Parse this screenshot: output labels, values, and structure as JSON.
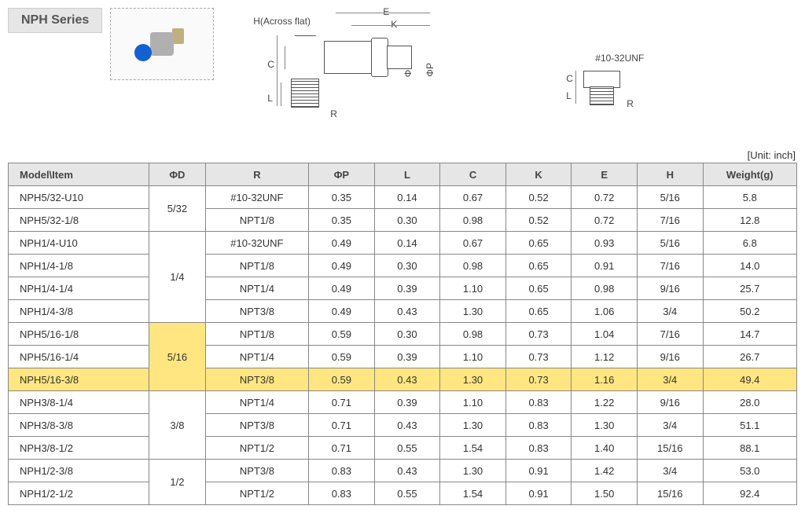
{
  "series_title": "NPH Series",
  "unit_label": "[Unit: inch]",
  "diagram_labels": {
    "h_across_flat": "H(Across flat)",
    "E": "E",
    "K": "K",
    "C": "C",
    "L": "L",
    "R": "R",
    "phiD": "ΦD",
    "phiP": "ΦP",
    "unf": "#10-32UNF"
  },
  "columns": [
    "Model\\Item",
    "ΦD",
    "R",
    "ΦP",
    "L",
    "C",
    "K",
    "E",
    "H",
    "Weight(g)"
  ],
  "groups": [
    {
      "phiD": "5/32",
      "highlightPhiD": false,
      "rows": [
        {
          "model": "NPH5/32-U10",
          "R": "#10-32UNF",
          "phiP": "0.35",
          "L": "0.14",
          "C": "0.67",
          "K": "0.52",
          "E": "0.72",
          "H": "5/16",
          "W": "5.8",
          "hl": false
        },
        {
          "model": "NPH5/32-1/8",
          "R": "NPT1/8",
          "phiP": "0.35",
          "L": "0.30",
          "C": "0.98",
          "K": "0.52",
          "E": "0.72",
          "H": "7/16",
          "W": "12.8",
          "hl": false
        }
      ]
    },
    {
      "phiD": "1/4",
      "highlightPhiD": false,
      "rows": [
        {
          "model": "NPH1/4-U10",
          "R": "#10-32UNF",
          "phiP": "0.49",
          "L": "0.14",
          "C": "0.67",
          "K": "0.65",
          "E": "0.93",
          "H": "5/16",
          "W": "6.8",
          "hl": false
        },
        {
          "model": "NPH1/4-1/8",
          "R": "NPT1/8",
          "phiP": "0.49",
          "L": "0.30",
          "C": "0.98",
          "K": "0.65",
          "E": "0.91",
          "H": "7/16",
          "W": "14.0",
          "hl": false
        },
        {
          "model": "NPH1/4-1/4",
          "R": "NPT1/4",
          "phiP": "0.49",
          "L": "0.39",
          "C": "1.10",
          "K": "0.65",
          "E": "0.98",
          "H": "9/16",
          "W": "25.7",
          "hl": false
        },
        {
          "model": "NPH1/4-3/8",
          "R": "NPT3/8",
          "phiP": "0.49",
          "L": "0.43",
          "C": "1.30",
          "K": "0.65",
          "E": "1.06",
          "H": "3/4",
          "W": "50.2",
          "hl": false
        }
      ]
    },
    {
      "phiD": "5/16",
      "highlightPhiD": true,
      "rows": [
        {
          "model": "NPH5/16-1/8",
          "R": "NPT1/8",
          "phiP": "0.59",
          "L": "0.30",
          "C": "0.98",
          "K": "0.73",
          "E": "1.04",
          "H": "7/16",
          "W": "14.7",
          "hl": false
        },
        {
          "model": "NPH5/16-1/4",
          "R": "NPT1/4",
          "phiP": "0.59",
          "L": "0.39",
          "C": "1.10",
          "K": "0.73",
          "E": "1.12",
          "H": "9/16",
          "W": "26.7",
          "hl": false
        },
        {
          "model": "NPH5/16-3/8",
          "R": "NPT3/8",
          "phiP": "0.59",
          "L": "0.43",
          "C": "1.30",
          "K": "0.73",
          "E": "1.16",
          "H": "3/4",
          "W": "49.4",
          "hl": true
        }
      ]
    },
    {
      "phiD": "3/8",
      "highlightPhiD": false,
      "rows": [
        {
          "model": "NPH3/8-1/4",
          "R": "NPT1/4",
          "phiP": "0.71",
          "L": "0.39",
          "C": "1.10",
          "K": "0.83",
          "E": "1.22",
          "H": "9/16",
          "W": "28.0",
          "hl": false
        },
        {
          "model": "NPH3/8-3/8",
          "R": "NPT3/8",
          "phiP": "0.71",
          "L": "0.43",
          "C": "1.30",
          "K": "0.83",
          "E": "1.30",
          "H": "3/4",
          "W": "51.1",
          "hl": false
        },
        {
          "model": "NPH3/8-1/2",
          "R": "NPT1/2",
          "phiP": "0.71",
          "L": "0.55",
          "C": "1.54",
          "K": "0.83",
          "E": "1.40",
          "H": "15/16",
          "W": "88.1",
          "hl": false
        }
      ]
    },
    {
      "phiD": "1/2",
      "highlightPhiD": false,
      "rows": [
        {
          "model": "NPH1/2-3/8",
          "R": "NPT3/8",
          "phiP": "0.83",
          "L": "0.43",
          "C": "1.30",
          "K": "0.91",
          "E": "1.42",
          "H": "3/4",
          "W": "53.0",
          "hl": false
        },
        {
          "model": "NPH1/2-1/2",
          "R": "NPT1/2",
          "phiP": "0.83",
          "L": "0.55",
          "C": "1.54",
          "K": "0.91",
          "E": "1.50",
          "H": "15/16",
          "W": "92.4",
          "hl": false
        }
      ]
    }
  ],
  "col_widths": [
    "150px",
    "60px",
    "110px",
    "70px",
    "70px",
    "70px",
    "70px",
    "70px",
    "70px",
    "100px"
  ]
}
